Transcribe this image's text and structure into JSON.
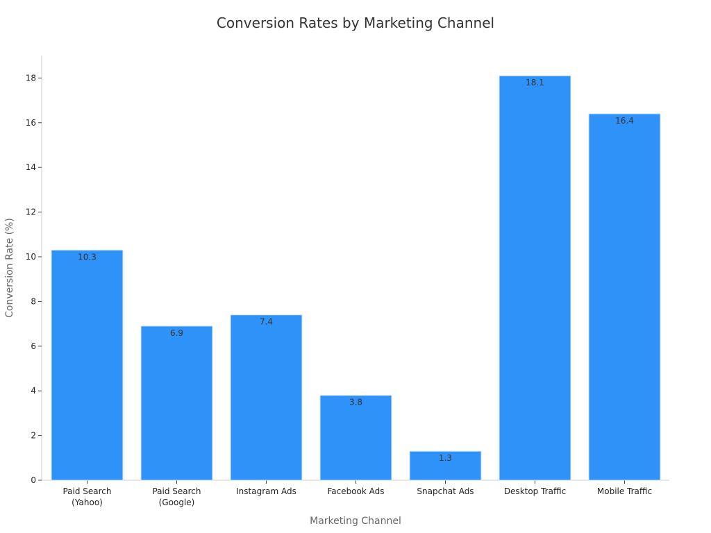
{
  "chart_data": {
    "type": "bar",
    "title": "Conversion Rates by Marketing Channel",
    "xlabel": "Marketing Channel",
    "ylabel": "Conversion Rate (%)",
    "categories": [
      [
        "Paid Search",
        "(Yahoo)"
      ],
      [
        "Paid Search",
        "(Google)"
      ],
      [
        "Instagram Ads"
      ],
      [
        "Facebook Ads"
      ],
      [
        "Snapchat Ads"
      ],
      [
        "Desktop Traffic"
      ],
      [
        "Mobile Traffic"
      ]
    ],
    "values": [
      10.3,
      6.9,
      7.4,
      3.8,
      1.3,
      18.1,
      16.4
    ],
    "data_labels": [
      "10.3",
      "6.9",
      "7.4",
      "3.8",
      "1.3",
      "18.1",
      "16.4"
    ],
    "y_ticks": [
      0,
      2,
      4,
      6,
      8,
      10,
      12,
      14,
      16,
      18
    ],
    "ylim": [
      0,
      19
    ],
    "grid": false,
    "legend": "none",
    "bar_color": "#2f92f9",
    "bar_edge_color": "#d6e6f7"
  }
}
